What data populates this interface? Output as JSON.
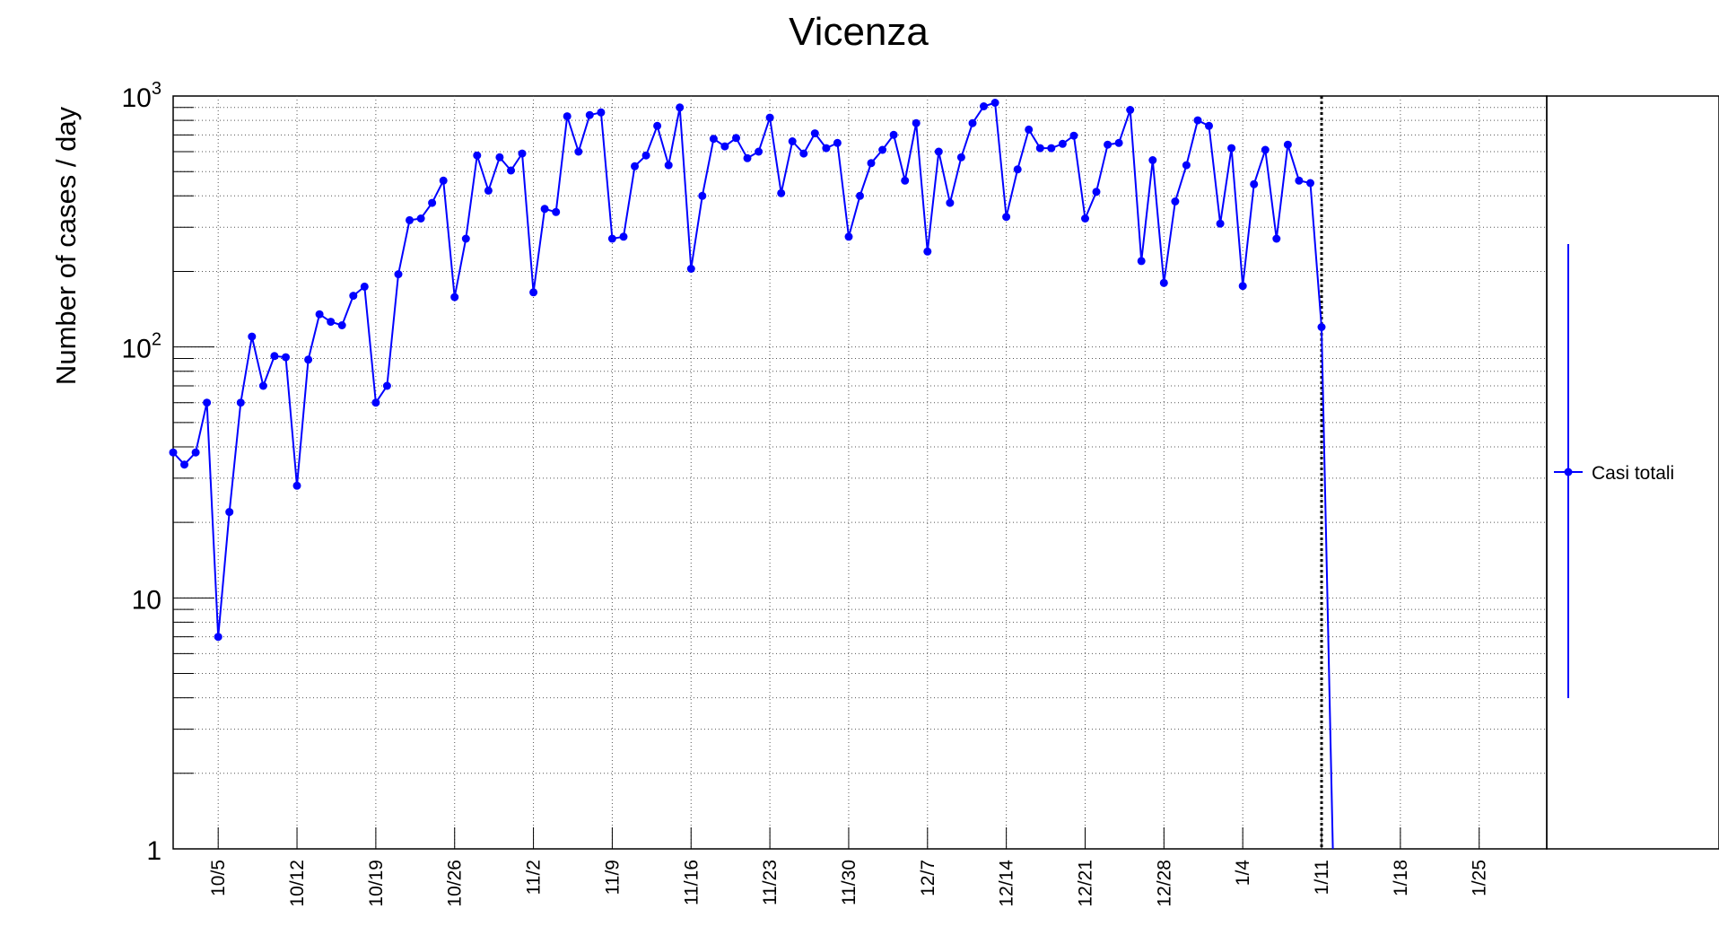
{
  "chart_data": {
    "type": "line",
    "title": "Vicenza",
    "xlabel": "",
    "ylabel": "Number of cases / day",
    "y_scale": "log",
    "ylim": [
      1,
      1000
    ],
    "xlim": [
      "2020-10-01",
      "2021-01-31"
    ],
    "grid": true,
    "legend_position": "right",
    "y_tick_labels": [
      {
        "value": 1,
        "base": "1",
        "exp": ""
      },
      {
        "value": 10,
        "base": "10",
        "exp": ""
      },
      {
        "value": 100,
        "base": "10",
        "exp": "2"
      },
      {
        "value": 1000,
        "base": "10",
        "exp": "3"
      }
    ],
    "x_tick_dates": [
      "2020-10-05",
      "2020-10-12",
      "2020-10-19",
      "2020-10-26",
      "2020-11-02",
      "2020-11-09",
      "2020-11-16",
      "2020-11-23",
      "2020-11-30",
      "2020-12-07",
      "2020-12-14",
      "2020-12-21",
      "2020-12-28",
      "2021-01-04",
      "2021-01-11",
      "2021-01-18",
      "2021-01-25"
    ],
    "x_tick_labels": [
      "10/5",
      "10/12",
      "10/19",
      "10/26",
      "11/2",
      "11/9",
      "11/16",
      "11/23",
      "11/30",
      "12/7",
      "12/14",
      "12/21",
      "12/28",
      "1/4",
      "1/11",
      "1/18",
      "1/25"
    ],
    "vertical_marker_date": "2021-01-11",
    "series": [
      {
        "name": "Casi totali",
        "color": "#0000ff",
        "start_date": "2020-10-01",
        "values": [
          38,
          34,
          38,
          60,
          7,
          22,
          60,
          110,
          70,
          92,
          91,
          28,
          89,
          135,
          126,
          122,
          160,
          174,
          60,
          70,
          195,
          320,
          325,
          375,
          460,
          158,
          270,
          580,
          420,
          570,
          505,
          590,
          165,
          355,
          345,
          830,
          600,
          840,
          860,
          270,
          275,
          525,
          580,
          760,
          530,
          900,
          205,
          400,
          675,
          630,
          680,
          565,
          600,
          820,
          410,
          660,
          590,
          710,
          620,
          650,
          275,
          400,
          540,
          610,
          700,
          460,
          780,
          240,
          600,
          375,
          570,
          780,
          910,
          940,
          330,
          510,
          735,
          620,
          620,
          645,
          695,
          325,
          415,
          640,
          650,
          880,
          220,
          555,
          180,
          380,
          530,
          800,
          760,
          310,
          620,
          175,
          445,
          610,
          270,
          640,
          460,
          450,
          120,
          1
        ]
      }
    ]
  }
}
